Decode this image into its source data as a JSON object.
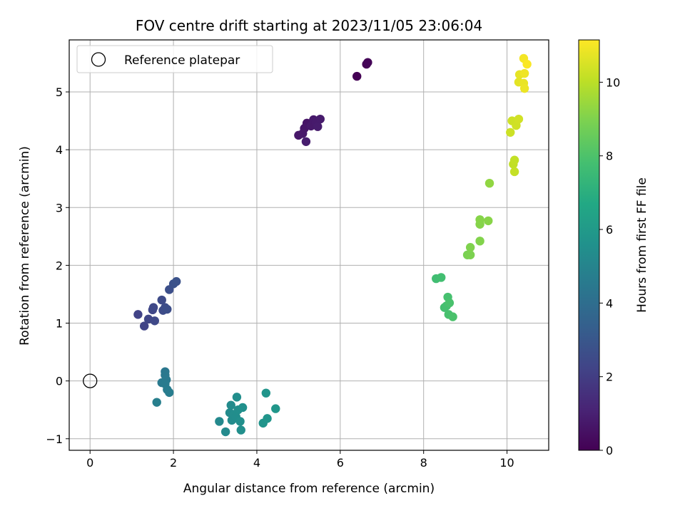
{
  "chart_data": {
    "type": "scatter",
    "title": "FOV centre drift starting at 2023/11/05 23:06:04",
    "xlabel": "Angular distance from reference (arcmin)",
    "ylabel": "Rotation from reference (arcmin)",
    "xlim": [
      -0.5,
      11.0
    ],
    "ylim": [
      -1.2,
      5.9
    ],
    "xticks": [
      0,
      2,
      4,
      6,
      8,
      10
    ],
    "yticks": [
      -1,
      0,
      1,
      2,
      3,
      4,
      5
    ],
    "grid": true,
    "legend": {
      "placement": "top-left",
      "entries": [
        "Reference platepar"
      ]
    },
    "reference_point": {
      "x": 0,
      "y": 0
    },
    "colorbar": {
      "label": "Hours from first FF file",
      "colormap": "viridis",
      "range": [
        0,
        11.15
      ],
      "ticks": [
        0,
        2,
        4,
        6,
        8,
        10
      ]
    },
    "points": [
      {
        "x": 6.4,
        "y": 5.27,
        "c": 0.0
      },
      {
        "x": 6.63,
        "y": 5.48,
        "c": 0.05
      },
      {
        "x": 6.66,
        "y": 5.51,
        "c": 0.1
      },
      {
        "x": 5.2,
        "y": 4.46,
        "c": 0.6
      },
      {
        "x": 5.14,
        "y": 4.37,
        "c": 0.65
      },
      {
        "x": 5.0,
        "y": 4.25,
        "c": 0.7
      },
      {
        "x": 5.1,
        "y": 4.28,
        "c": 0.72
      },
      {
        "x": 5.3,
        "y": 4.41,
        "c": 0.75
      },
      {
        "x": 5.36,
        "y": 4.52,
        "c": 0.78
      },
      {
        "x": 5.42,
        "y": 4.47,
        "c": 0.8
      },
      {
        "x": 5.52,
        "y": 4.53,
        "c": 0.82
      },
      {
        "x": 5.46,
        "y": 4.4,
        "c": 0.85
      },
      {
        "x": 5.18,
        "y": 4.14,
        "c": 0.88
      },
      {
        "x": 1.15,
        "y": 1.15,
        "c": 2.2
      },
      {
        "x": 1.3,
        "y": 0.95,
        "c": 2.25
      },
      {
        "x": 1.4,
        "y": 1.07,
        "c": 2.3
      },
      {
        "x": 1.5,
        "y": 1.23,
        "c": 2.35
      },
      {
        "x": 1.52,
        "y": 1.27,
        "c": 2.4
      },
      {
        "x": 1.55,
        "y": 1.04,
        "c": 2.45
      },
      {
        "x": 1.72,
        "y": 1.4,
        "c": 2.5
      },
      {
        "x": 1.75,
        "y": 1.22,
        "c": 2.55
      },
      {
        "x": 1.8,
        "y": 1.27,
        "c": 2.6
      },
      {
        "x": 1.85,
        "y": 1.24,
        "c": 2.65
      },
      {
        "x": 1.9,
        "y": 1.58,
        "c": 2.7
      },
      {
        "x": 2.0,
        "y": 1.68,
        "c": 2.75
      },
      {
        "x": 2.07,
        "y": 1.72,
        "c": 2.8
      },
      {
        "x": 1.8,
        "y": 0.16,
        "c": 4.4
      },
      {
        "x": 1.8,
        "y": 0.1,
        "c": 4.45
      },
      {
        "x": 1.83,
        "y": 0.02,
        "c": 4.5
      },
      {
        "x": 1.72,
        "y": -0.03,
        "c": 4.55
      },
      {
        "x": 1.8,
        "y": -0.05,
        "c": 4.6
      },
      {
        "x": 1.85,
        "y": -0.15,
        "c": 4.65
      },
      {
        "x": 1.9,
        "y": -0.2,
        "c": 4.7
      },
      {
        "x": 1.6,
        "y": -0.37,
        "c": 4.75
      },
      {
        "x": 3.1,
        "y": -0.7,
        "c": 5.2
      },
      {
        "x": 3.25,
        "y": -0.88,
        "c": 5.25
      },
      {
        "x": 3.35,
        "y": -0.55,
        "c": 5.3
      },
      {
        "x": 3.38,
        "y": -0.42,
        "c": 5.32
      },
      {
        "x": 3.4,
        "y": -0.68,
        "c": 5.35
      },
      {
        "x": 3.45,
        "y": -0.58,
        "c": 5.38
      },
      {
        "x": 3.5,
        "y": -0.62,
        "c": 5.4
      },
      {
        "x": 3.52,
        "y": -0.28,
        "c": 5.42
      },
      {
        "x": 3.55,
        "y": -0.5,
        "c": 5.45
      },
      {
        "x": 3.6,
        "y": -0.7,
        "c": 5.48
      },
      {
        "x": 3.62,
        "y": -0.85,
        "c": 5.5
      },
      {
        "x": 3.66,
        "y": -0.46,
        "c": 5.52
      },
      {
        "x": 4.15,
        "y": -0.73,
        "c": 5.7
      },
      {
        "x": 4.22,
        "y": -0.21,
        "c": 5.75
      },
      {
        "x": 4.25,
        "y": -0.65,
        "c": 5.78
      },
      {
        "x": 4.45,
        "y": -0.48,
        "c": 5.82
      },
      {
        "x": 8.3,
        "y": 1.77,
        "c": 7.7
      },
      {
        "x": 8.42,
        "y": 1.79,
        "c": 7.75
      },
      {
        "x": 8.5,
        "y": 1.27,
        "c": 7.8
      },
      {
        "x": 8.55,
        "y": 1.3,
        "c": 7.82
      },
      {
        "x": 8.58,
        "y": 1.45,
        "c": 7.85
      },
      {
        "x": 8.6,
        "y": 1.15,
        "c": 7.88
      },
      {
        "x": 8.62,
        "y": 1.35,
        "c": 7.9
      },
      {
        "x": 8.7,
        "y": 1.11,
        "c": 7.95
      },
      {
        "x": 9.05,
        "y": 2.18,
        "c": 8.9
      },
      {
        "x": 9.12,
        "y": 2.18,
        "c": 8.95
      },
      {
        "x": 9.12,
        "y": 2.31,
        "c": 9.0
      },
      {
        "x": 9.35,
        "y": 2.42,
        "c": 9.05
      },
      {
        "x": 9.35,
        "y": 2.71,
        "c": 9.1
      },
      {
        "x": 9.35,
        "y": 2.79,
        "c": 9.12
      },
      {
        "x": 9.55,
        "y": 2.77,
        "c": 9.15
      },
      {
        "x": 9.58,
        "y": 3.42,
        "c": 9.3
      },
      {
        "x": 10.15,
        "y": 3.75,
        "c": 10.1
      },
      {
        "x": 10.18,
        "y": 3.82,
        "c": 10.12
      },
      {
        "x": 10.18,
        "y": 3.62,
        "c": 10.15
      },
      {
        "x": 10.08,
        "y": 4.3,
        "c": 10.3
      },
      {
        "x": 10.12,
        "y": 4.5,
        "c": 10.32
      },
      {
        "x": 10.22,
        "y": 4.42,
        "c": 10.35
      },
      {
        "x": 10.28,
        "y": 4.53,
        "c": 10.38
      },
      {
        "x": 10.28,
        "y": 5.17,
        "c": 10.7
      },
      {
        "x": 10.3,
        "y": 5.3,
        "c": 10.75
      },
      {
        "x": 10.4,
        "y": 5.15,
        "c": 10.8
      },
      {
        "x": 10.42,
        "y": 5.06,
        "c": 10.85
      },
      {
        "x": 10.42,
        "y": 5.32,
        "c": 10.9
      },
      {
        "x": 10.4,
        "y": 5.58,
        "c": 11.0
      },
      {
        "x": 10.48,
        "y": 5.48,
        "c": 11.1
      }
    ]
  }
}
